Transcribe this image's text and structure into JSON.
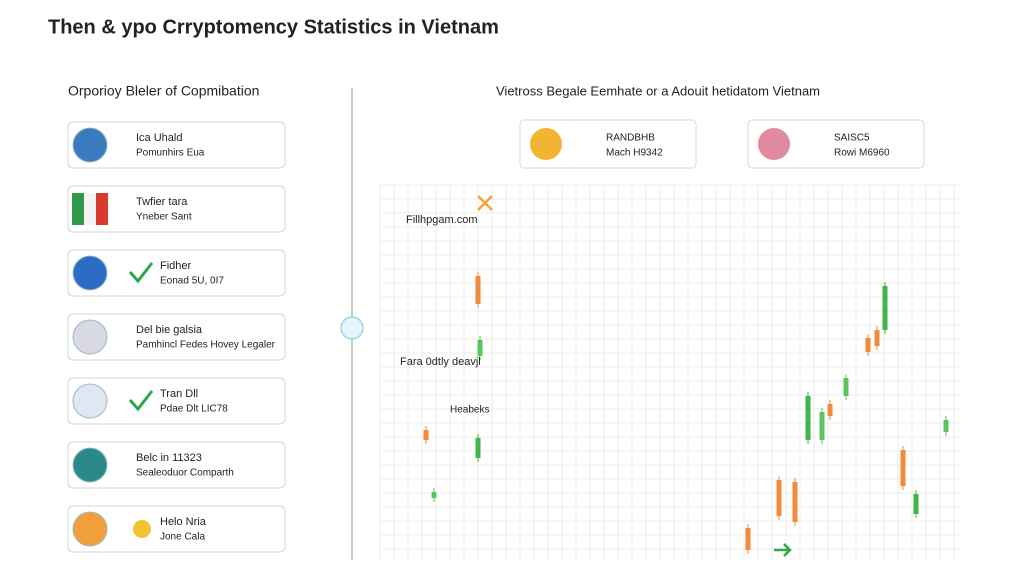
{
  "title": "Then & ypo Crryptomency Statistics in Vietnam",
  "left_panel": {
    "heading": "Orporioy Bleler of Copmibation",
    "items": [
      {
        "title": "Ica Uhald",
        "subtitle": "Pomunhirs Eua"
      },
      {
        "title": "Twfier tara",
        "subtitle": "Yneber Sant"
      },
      {
        "title": "Fidher",
        "subtitle": "Eonad 5U, 0I7"
      },
      {
        "title": "Del bie galsia",
        "subtitle": "Pamhincl Fedes Hovey Legaler"
      },
      {
        "title": "Tran Dll",
        "subtitle": "Pdae Dlt LIC78"
      },
      {
        "title": "Belc in 11323",
        "subtitle": "Sealeoduor Comparth"
      },
      {
        "title": "Helo Nria",
        "subtitle": "Jone Cala"
      }
    ]
  },
  "right_panel": {
    "heading": "Vietross Begale Eemhate or a Adouit hetidatom Vietnam",
    "stats": [
      {
        "lines": [
          "RANDBHB",
          "Mach H9342"
        ]
      },
      {
        "lines": [
          "SAISC5",
          "Rowi M6960"
        ]
      }
    ],
    "chart_labels": [
      "Fillhpgam.com",
      "Fara 0dtly deavjl",
      "Heabeks"
    ]
  }
}
